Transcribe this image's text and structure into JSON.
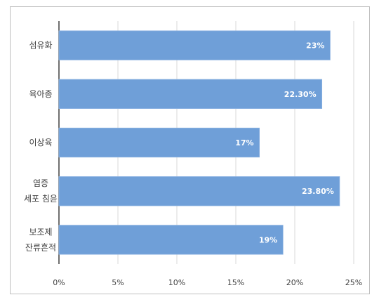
{
  "chart_data": {
    "type": "bar",
    "orientation": "horizontal",
    "categories": [
      [
        "섬유화"
      ],
      [
        "육아종"
      ],
      [
        "이상육"
      ],
      [
        "염증",
        "세포 침윤"
      ],
      [
        "보조제",
        "잔류흔적"
      ]
    ],
    "values": [
      23,
      22.3,
      17,
      23.8,
      19
    ],
    "data_labels": [
      "23%",
      "22.30%",
      "17%",
      "23.80%",
      "19%"
    ],
    "xticks": [
      "0%",
      "5%",
      "10%",
      "15%",
      "20%",
      "25%"
    ],
    "xlim": [
      0,
      25
    ],
    "grid": true,
    "bar_color": "#6f9fd8",
    "title": "",
    "xlabel": "",
    "ylabel": ""
  }
}
